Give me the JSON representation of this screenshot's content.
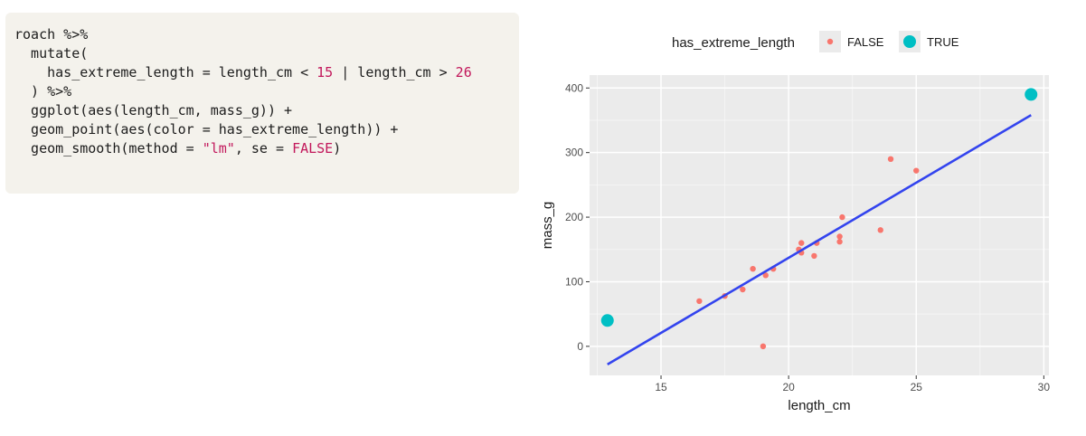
{
  "code": {
    "lines": [
      [
        {
          "t": "roach %>%"
        }
      ],
      [
        {
          "t": "  mutate("
        }
      ],
      [
        {
          "t": "    has_extreme_length = length_cm < "
        },
        {
          "t": "15",
          "c": "num"
        },
        {
          "t": " | length_cm > "
        },
        {
          "t": "26",
          "c": "num"
        }
      ],
      [
        {
          "t": "  ) %>%"
        }
      ],
      [
        {
          "t": "  ggplot(aes(length_cm, mass_g)) +"
        }
      ],
      [
        {
          "t": "  geom_point(aes(color = has_extreme_length)) +"
        }
      ],
      [
        {
          "t": "  geom_smooth(method = "
        },
        {
          "t": "\"lm\"",
          "c": "str"
        },
        {
          "t": ", se = "
        },
        {
          "t": "FALSE",
          "c": "kw"
        },
        {
          "t": ")"
        }
      ]
    ]
  },
  "chart_data": {
    "type": "scatter",
    "xlabel": "length_cm",
    "ylabel": "mass_g",
    "xlim": [
      12.2,
      30.2
    ],
    "ylim": [
      -45,
      420
    ],
    "xticks": [
      15,
      20,
      25,
      30
    ],
    "yticks": [
      0,
      100,
      200,
      300,
      400
    ],
    "grid": true,
    "legend": {
      "title": "has_extreme_length",
      "position": "top",
      "entries": [
        "FALSE",
        "TRUE"
      ]
    },
    "colors": {
      "FALSE": "#f8766d",
      "TRUE": "#00bfc4",
      "line": "#3344ee",
      "panel": "#ebebeb"
    },
    "series": [
      {
        "name": "FALSE",
        "x": [
          16.5,
          17.5,
          18.2,
          18.6,
          19.0,
          19.1,
          19.4,
          20.4,
          20.5,
          20.5,
          21.0,
          21.1,
          22.0,
          22.0,
          22.1,
          23.6,
          24.0,
          25.0
        ],
        "y": [
          70,
          78,
          88,
          120,
          0,
          110,
          120,
          150,
          160,
          145,
          140,
          160,
          170,
          162,
          200,
          180,
          290,
          272
        ]
      },
      {
        "name": "TRUE",
        "x": [
          12.9,
          29.5
        ],
        "y": [
          40,
          390
        ]
      }
    ],
    "fit_line": {
      "x": [
        12.9,
        29.5
      ],
      "y": [
        -28,
        358
      ]
    }
  }
}
